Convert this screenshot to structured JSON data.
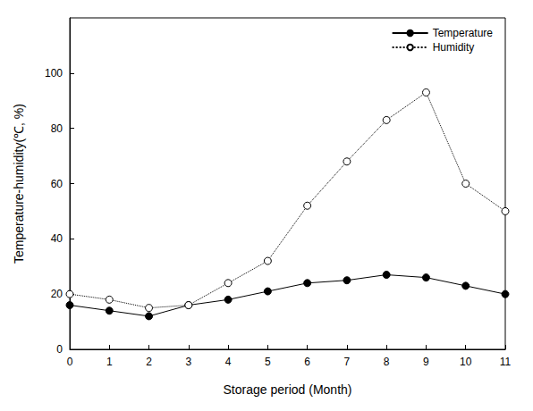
{
  "chart_data": {
    "type": "line",
    "x_label": "Storage period (Month)",
    "y_label": "Temperature-humidity(℃, %)",
    "x": [
      0,
      1,
      2,
      3,
      4,
      5,
      6,
      7,
      8,
      9,
      10,
      11
    ],
    "xlim": [
      0,
      11
    ],
    "xticks": [
      0,
      1,
      2,
      3,
      4,
      5,
      6,
      7,
      8,
      9,
      10,
      11
    ],
    "ylim": [
      0,
      120
    ],
    "yticks": [
      0,
      20,
      40,
      60,
      80,
      100
    ],
    "grid": false,
    "legend": "upper right",
    "series": [
      {
        "name": "Temperature",
        "color": "#000000",
        "marker": "filled",
        "line_style": "solid",
        "values": [
          16,
          14,
          12,
          16,
          18,
          21,
          24,
          25,
          27,
          26,
          23,
          20
        ]
      },
      {
        "name": "Humidity",
        "color": "#000000",
        "marker": "open",
        "line_style": "dotted",
        "values": [
          20,
          18,
          15,
          16,
          24,
          32,
          52,
          68,
          83,
          93,
          60,
          50
        ]
      }
    ]
  }
}
